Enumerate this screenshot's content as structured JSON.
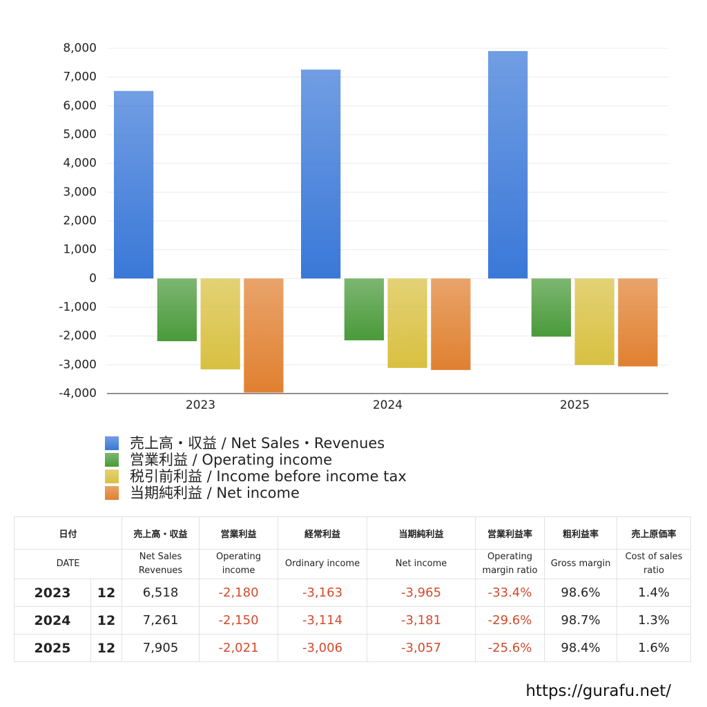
{
  "chart_data": {
    "type": "bar",
    "categories": [
      "2023",
      "2024",
      "2025"
    ],
    "series": [
      {
        "name": "売上高・収益 / Net Sales・Revenues",
        "color": "#3a78d8",
        "values": [
          6518,
          7261,
          7905
        ]
      },
      {
        "name": "営業利益 / Operating income",
        "color": "#4a9a3a",
        "values": [
          -2180,
          -2150,
          -2021
        ]
      },
      {
        "name": "税引前利益 / Income before income tax",
        "color": "#d8c040",
        "values": [
          -3160,
          -3110,
          -3010
        ]
      },
      {
        "name": "当期純利益 / Net income",
        "color": "#e08030",
        "values": [
          -3965,
          -3181,
          -3057
        ]
      }
    ],
    "ylim": [
      -4000,
      8000
    ],
    "yticks": [
      {
        "value": -4000,
        "label": "-4,000"
      },
      {
        "value": -3000,
        "label": "-3,000"
      },
      {
        "value": -2000,
        "label": "-2,000"
      },
      {
        "value": -1000,
        "label": "-1,000"
      },
      0,
      {
        "value": 1000,
        "label": "1,000"
      },
      {
        "value": 2000,
        "label": "2,000"
      },
      {
        "value": 3000,
        "label": "3,000"
      },
      {
        "value": 4000,
        "label": "4,000"
      },
      {
        "value": 5000,
        "label": "5,000"
      },
      {
        "value": 6000,
        "label": "6,000"
      },
      {
        "value": 7000,
        "label": "7,000"
      },
      {
        "value": 8000,
        "label": "8,000"
      }
    ],
    "grid": true
  },
  "table": {
    "header": [
      [
        "日付",
        "売上高・収益",
        "営業利益",
        "経常利益",
        "当期純利益",
        "営業利益率",
        "粗利益率",
        "売上原価率"
      ],
      [
        "DATE",
        "Net Sales Revenues",
        "Operating income",
        "Ordinary income",
        "Net income",
        "Operating margin ratio",
        "Gross margin",
        "Cost of sales ratio"
      ]
    ],
    "rows": [
      [
        "2023",
        "12",
        "6,518",
        "-2,180",
        "-3,163",
        "-3,965",
        "-33.4%",
        "98.6%",
        "1.4%"
      ],
      [
        "2024",
        "12",
        "7,261",
        "-2,150",
        "-3,114",
        "-3,181",
        "-29.6%",
        "98.7%",
        "1.3%"
      ],
      [
        "2025",
        "12",
        "7,905",
        "-2,021",
        "-3,006",
        "-3,057",
        "-25.6%",
        "98.4%",
        "1.6%"
      ]
    ]
  },
  "footer": {
    "url": "https://gurafu.net/"
  }
}
